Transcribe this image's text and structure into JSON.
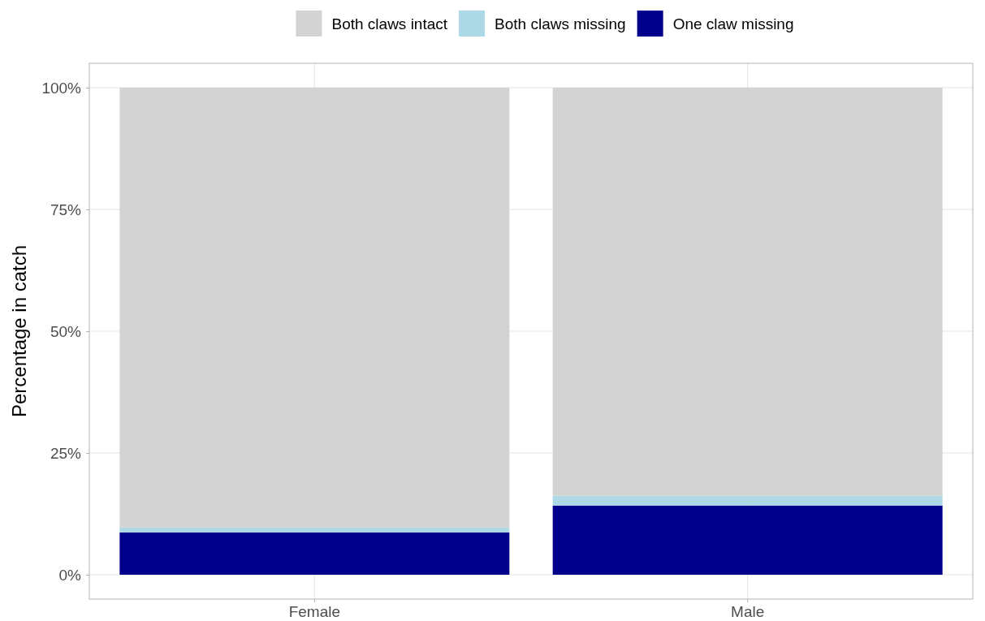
{
  "chart_data": {
    "type": "bar",
    "stacked": true,
    "ylabel": "Percentage in catch",
    "categories": [
      "Female",
      "Male"
    ],
    "series": [
      {
        "name": "One claw missing",
        "color": "#00008b",
        "values": [
          8.7,
          14.2
        ]
      },
      {
        "name": "Both claws missing",
        "color": "#add8e6",
        "values": [
          1.0,
          2.0
        ]
      },
      {
        "name": "Both claws intact",
        "color": "#d3d3d3",
        "values": [
          90.3,
          83.8
        ]
      }
    ],
    "ylim": [
      -5,
      105
    ],
    "yticks": [
      {
        "value": 0,
        "label": "0%"
      },
      {
        "value": 25,
        "label": "25%"
      },
      {
        "value": 50,
        "label": "50%"
      },
      {
        "value": 75,
        "label": "75%"
      },
      {
        "value": 100,
        "label": "100%"
      }
    ],
    "grid": true,
    "legend": "top"
  }
}
